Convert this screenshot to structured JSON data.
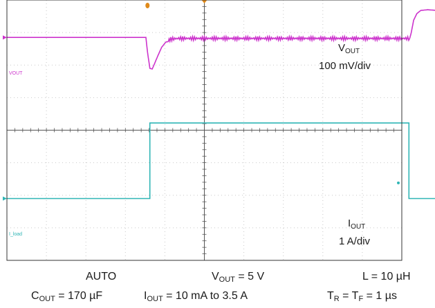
{
  "chart_data": {
    "type": "line",
    "x_divisions": 10,
    "y_divisions": 8,
    "grid": true,
    "series": [
      {
        "name": "VOUT",
        "channel_label": "VOUT",
        "color": "#cc33cc",
        "scale_label": "100 mV/div",
        "ref_level_div": 1.15,
        "points": [
          [
            0.0,
            1.15
          ],
          [
            3.52,
            1.15
          ],
          [
            3.56,
            1.6
          ],
          [
            3.62,
            2.1
          ],
          [
            3.68,
            2.12
          ],
          [
            3.74,
            1.95
          ],
          [
            3.82,
            1.72
          ],
          [
            3.92,
            1.45
          ],
          [
            4.02,
            1.3
          ],
          [
            4.15,
            1.2
          ],
          [
            4.35,
            1.18
          ],
          [
            4.6,
            1.18
          ],
          [
            10.2,
            1.18
          ],
          [
            10.24,
            1.0
          ],
          [
            10.3,
            0.62
          ],
          [
            10.38,
            0.42
          ],
          [
            10.48,
            0.32
          ],
          [
            10.65,
            0.3
          ],
          [
            11.0,
            0.33
          ],
          [
            12.0,
            0.35
          ],
          [
            13.6,
            0.35
          ]
        ],
        "ripple_range_div": [
          4.05,
          10.18
        ],
        "ripple_amplitude_div": 0.06
      },
      {
        "name": "IOUT",
        "channel_label": "I_load",
        "color": "#2fb5b5",
        "scale_label": "1 A/div",
        "ref_level_div": 6.1,
        "points": [
          [
            0.0,
            6.1
          ],
          [
            3.62,
            6.1
          ],
          [
            3.62,
            3.78
          ],
          [
            10.18,
            3.78
          ],
          [
            10.18,
            6.1
          ],
          [
            13.6,
            6.1
          ]
        ]
      }
    ]
  },
  "labels": {
    "vout_name": "V",
    "vout_sub": "OUT",
    "vout_scale": "100 mV/div",
    "iout_name": "I",
    "iout_sub": "OUT",
    "iout_scale": "1 A/div",
    "vout_channel_tag": "VOUT",
    "iout_channel_tag": "I_load"
  },
  "captions": {
    "mode": "AUTO",
    "vout_pre": "V",
    "vout_sub": "OUT",
    "vout_post": " = 5 V",
    "inductor": "L = 10 µH",
    "cout_pre": "C",
    "cout_sub": "OUT",
    "cout_post": " = 170 µF",
    "iout_pre": "I",
    "iout_sub": "OUT",
    "iout_post": " = 10 mA to 3.5 A",
    "tr_pre": "T",
    "tr_sub": "R",
    "tr_mid": " = T",
    "tf_sub": "F",
    "tf_post": " = 1 µs"
  },
  "colors": {
    "grid": "#c8c8c8",
    "axis": "#555555",
    "frame": "#333333",
    "trigger": "#e08a1a"
  }
}
